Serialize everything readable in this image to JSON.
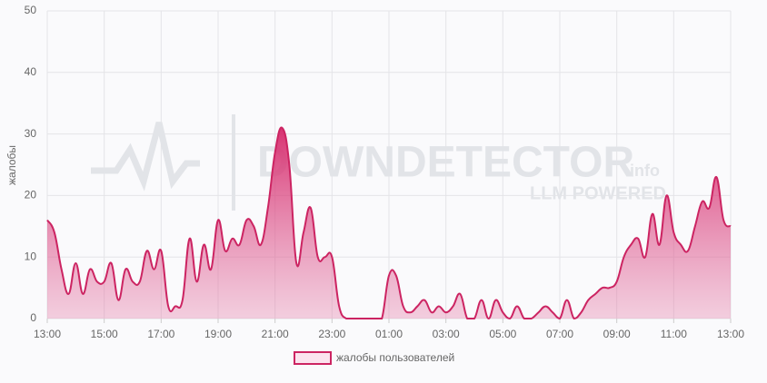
{
  "chart_data": {
    "type": "area",
    "y_label": "жалобы",
    "watermark": {
      "brand": "DOWNDETECTOR",
      "suffix": ".info",
      "tagline": "LLM POWERED"
    },
    "xlim": [
      0,
      24
    ],
    "xticks": [
      {
        "value": 0,
        "label": "13:00"
      },
      {
        "value": 2,
        "label": "15:00"
      },
      {
        "value": 4,
        "label": "17:00"
      },
      {
        "value": 6,
        "label": "19:00"
      },
      {
        "value": 8,
        "label": "21:00"
      },
      {
        "value": 10,
        "label": "23:00"
      },
      {
        "value": 12,
        "label": "01:00"
      },
      {
        "value": 14,
        "label": "03:00"
      },
      {
        "value": 16,
        "label": "05:00"
      },
      {
        "value": 18,
        "label": "07:00"
      },
      {
        "value": 20,
        "label": "09:00"
      },
      {
        "value": 22,
        "label": "11:00"
      },
      {
        "value": 24,
        "label": "13:00"
      }
    ],
    "ylim": [
      0,
      50
    ],
    "yticks": [
      0,
      10,
      20,
      30,
      40,
      50
    ],
    "grid": true,
    "x": [
      0,
      0.25,
      0.5,
      0.75,
      1,
      1.25,
      1.5,
      1.75,
      2,
      2.25,
      2.5,
      2.75,
      3,
      3.25,
      3.5,
      3.75,
      4,
      4.25,
      4.5,
      4.75,
      5,
      5.25,
      5.5,
      5.75,
      6,
      6.25,
      6.5,
      6.75,
      7,
      7.25,
      7.5,
      7.75,
      8,
      8.25,
      8.5,
      8.75,
      9,
      9.25,
      9.5,
      9.75,
      10,
      10.25,
      10.5,
      10.75,
      11,
      11.25,
      11.5,
      11.75,
      12,
      12.25,
      12.5,
      12.75,
      13,
      13.25,
      13.5,
      13.75,
      14,
      14.25,
      14.5,
      14.75,
      15,
      15.25,
      15.5,
      15.75,
      16,
      16.25,
      16.5,
      16.75,
      17,
      17.25,
      17.5,
      17.75,
      18,
      18.25,
      18.5,
      18.75,
      19,
      19.25,
      19.5,
      19.75,
      20,
      20.25,
      20.5,
      20.75,
      21,
      21.25,
      21.5,
      21.75,
      22,
      22.25,
      22.5,
      22.75,
      23,
      23.25,
      23.5,
      23.75,
      24
    ],
    "series": [
      {
        "name": "жалобы пользователей",
        "color": "#cc2462",
        "values": [
          16,
          14,
          8,
          4,
          9,
          4,
          8,
          6,
          6,
          9,
          3,
          8,
          6,
          6,
          11,
          8,
          11,
          2,
          2,
          3,
          13,
          6,
          12,
          8,
          16,
          11,
          13,
          12,
          16,
          15,
          12,
          18,
          27,
          31,
          25,
          9,
          14,
          18,
          10,
          10,
          10,
          2,
          0,
          0,
          0,
          0,
          0,
          0,
          7,
          7,
          2,
          1,
          2,
          3,
          1,
          2,
          1,
          2,
          4,
          0,
          0,
          3,
          0,
          3,
          1,
          0,
          2,
          0,
          0,
          1,
          2,
          1,
          0,
          3,
          0,
          1,
          3,
          4,
          5,
          5,
          6,
          10,
          12,
          13,
          10,
          17,
          12,
          20,
          14,
          12,
          11,
          15,
          19,
          18,
          23,
          16,
          15
        ]
      }
    ],
    "legend": "bottom"
  }
}
